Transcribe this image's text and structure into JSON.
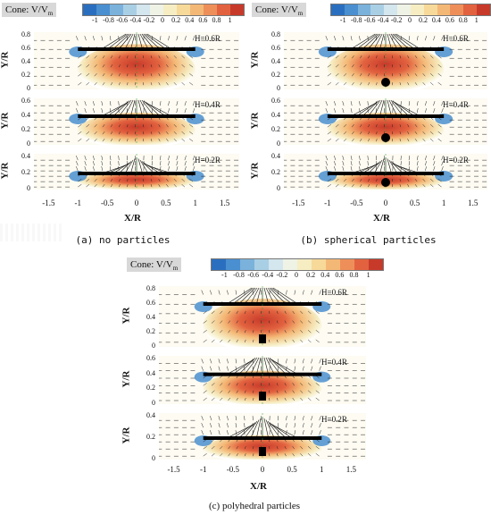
{
  "colorbar": {
    "label_main": "Cone: V/V",
    "label_sub": "m",
    "ticks": [
      "-1",
      "-0.8",
      "-0.6",
      "-0.4",
      "-0.2",
      "0",
      "0.2",
      "0.4",
      "0.6",
      "0.8",
      "1"
    ],
    "colors": [
      "#2a6fbf",
      "#4a8fd0",
      "#7ab2dc",
      "#a9cfe5",
      "#d4e6ee",
      "#eef3e6",
      "#f6edc3",
      "#f7d99a",
      "#f4b876",
      "#ee8f5a",
      "#e2623f",
      "#c73a2a"
    ]
  },
  "axes": {
    "ylabel": "Y/R",
    "xlabel": "X/R",
    "xticks": [
      "-1.5",
      "-1",
      "-0.5",
      "0",
      "0.5",
      "1",
      "1.5"
    ]
  },
  "panels": [
    {
      "caption": "(a)  no particles",
      "particle": "none",
      "rows": [
        {
          "h_label": "H=0.6R",
          "yticks": [
            "0.8",
            "0.6",
            "0.4",
            "0.2",
            "0"
          ],
          "plate": 0.6
        },
        {
          "h_label": "H=0.4R",
          "yticks": [
            "0.6",
            "0.4",
            "0.2",
            "0"
          ],
          "plate": 0.4
        },
        {
          "h_label": "H=0.2R",
          "yticks": [
            "0.4",
            "0.2",
            "0"
          ],
          "plate": 0.2
        }
      ]
    },
    {
      "caption": "(b)  spherical particles",
      "particle": "sphere",
      "rows": [
        {
          "h_label": "H=0.6R",
          "yticks": [
            "0.8",
            "0.6",
            "0.4",
            "0.2",
            "0"
          ],
          "plate": 0.6
        },
        {
          "h_label": "H=0.4R",
          "yticks": [
            "0.6",
            "0.4",
            "0.2",
            "0"
          ],
          "plate": 0.4
        },
        {
          "h_label": "H=0.2R",
          "yticks": [
            "0.4",
            "0.2",
            "0"
          ],
          "plate": 0.2
        }
      ]
    },
    {
      "caption": "(c) polyhedral particles",
      "particle": "polyhedron",
      "rows": [
        {
          "h_label": "H=0.6R",
          "yticks": [
            "0.8",
            "0.6",
            "0.4",
            "0.2",
            "0"
          ],
          "plate": 0.6
        },
        {
          "h_label": "H=0.4R",
          "yticks": [
            "0.6",
            "0.4",
            "0.2",
            "0"
          ],
          "plate": 0.4
        },
        {
          "h_label": "H=0.2R",
          "yticks": [
            "0.4",
            "0.2",
            "0"
          ],
          "plate": 0.2
        }
      ]
    }
  ]
}
